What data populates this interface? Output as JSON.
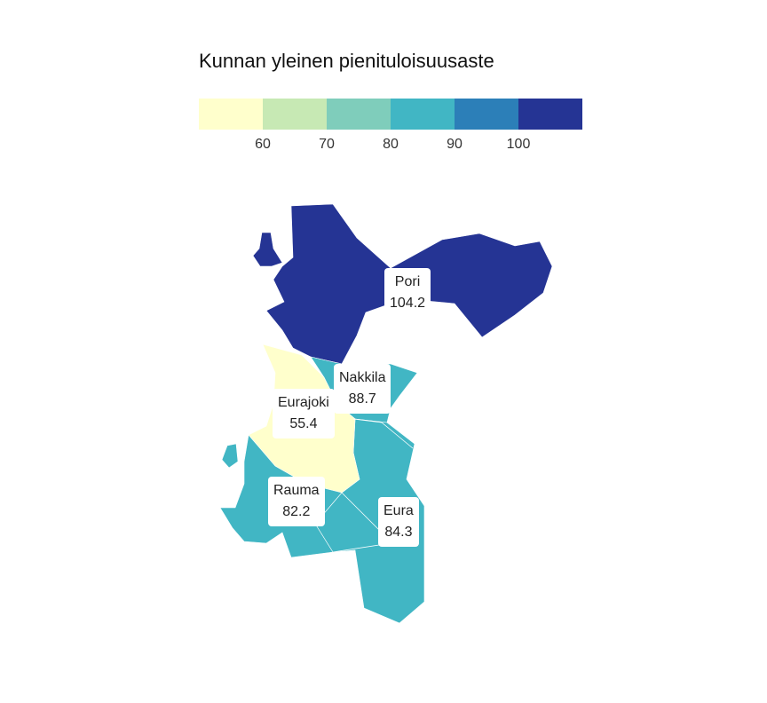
{
  "legend": {
    "title": "Kunnan yleinen pienituloisuusaste",
    "colors": [
      "#ffffcc",
      "#c7e9b4",
      "#7fcdbb",
      "#41b6c4",
      "#2c7fb8",
      "#253494"
    ],
    "ticks": [
      "60",
      "70",
      "80",
      "90",
      "100"
    ]
  },
  "regions": [
    {
      "id": "pori",
      "name": "Pori",
      "value": "104.2",
      "color": "#253494"
    },
    {
      "id": "nakkila",
      "name": "Nakkila",
      "value": "88.7",
      "color": "#41b6c4"
    },
    {
      "id": "eurajoki",
      "name": "Eurajoki",
      "value": "55.4",
      "color": "#ffffcc"
    },
    {
      "id": "rauma",
      "name": "Rauma",
      "value": "82.2",
      "color": "#41b6c4"
    },
    {
      "id": "eura",
      "name": "Eura",
      "value": "84.3",
      "color": "#41b6c4"
    }
  ]
}
